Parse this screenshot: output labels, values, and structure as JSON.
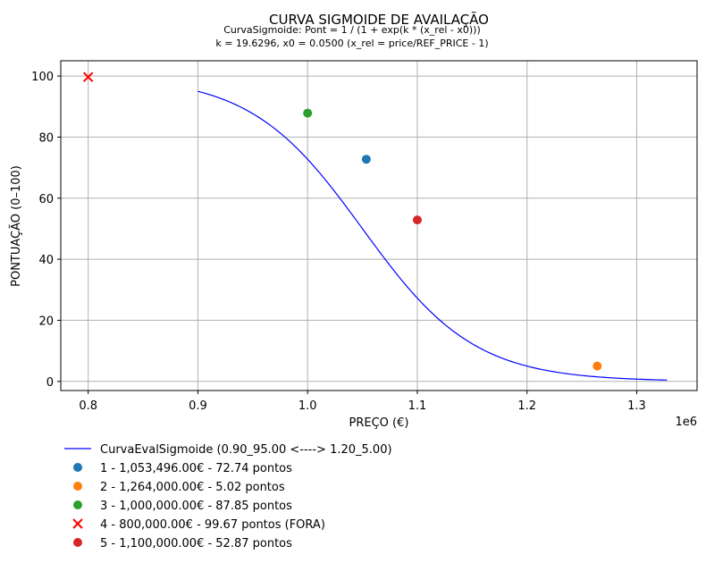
{
  "chart_data": {
    "type": "scatter",
    "title": "CURVA SIGMOIDE DE AVAILAÇÃO",
    "subtitle_lines": [
      "CurvaSigmoide: Pont = 1 / (1 + exp(k * (x_rel - x0)))",
      "k = 19.6296, x0 = 0.0500 (x_rel = price/REF_PRICE - 1)"
    ],
    "xlabel": "PREÇO (€)",
    "ylabel": "PONTUAÇÃO (0–100)",
    "x_offset_label": "1e6",
    "xlim": [
      0.775,
      1.355
    ],
    "ylim": [
      -3,
      105
    ],
    "xticks": [
      0.8,
      0.9,
      1.0,
      1.1,
      1.2,
      1.3
    ],
    "xtick_labels": [
      "0.8",
      "0.9",
      "1.0",
      "1.1",
      "1.2",
      "1.3"
    ],
    "yticks": [
      0,
      20,
      40,
      60,
      80,
      100
    ],
    "ytick_labels": [
      "0",
      "20",
      "40",
      "60",
      "80",
      "100"
    ],
    "grid": true,
    "legend_position": "below",
    "curve": {
      "name": "CurvaEvalSigmoide (0.90_95.00 <----> 1.20_5.00)",
      "color": "#0000ff",
      "x_range": [
        0.9,
        1.3277
      ],
      "ref_price": 1.0,
      "k": 19.6296,
      "x0": 0.05
    },
    "series": [
      {
        "name": "1 - 1,053,496.00€ - 72.74 pontos",
        "x": 1.053496,
        "y": 72.74,
        "color": "#1f77b4",
        "marker": "circle"
      },
      {
        "name": "2 - 1,264,000.00€ - 5.02 pontos",
        "x": 1.264,
        "y": 5.02,
        "color": "#ff7f0e",
        "marker": "circle"
      },
      {
        "name": "3 - 1,000,000.00€ - 87.85 pontos",
        "x": 1.0,
        "y": 87.85,
        "color": "#2ca02c",
        "marker": "circle"
      },
      {
        "name": "4 - 800,000.00€ - 99.67 pontos (FORA)",
        "x": 0.8,
        "y": 99.67,
        "color": "#ff0000",
        "marker": "x"
      },
      {
        "name": "5 - 1,100,000.00€ - 52.87 pontos",
        "x": 1.1,
        "y": 52.87,
        "color": "#d62728",
        "marker": "circle"
      }
    ]
  }
}
